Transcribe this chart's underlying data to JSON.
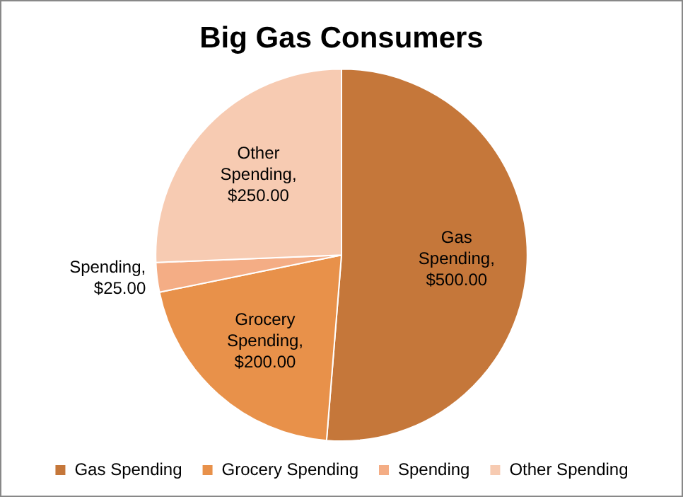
{
  "chart_data": {
    "type": "pie",
    "title": "Big Gas Consumers",
    "categories": [
      "Gas Spending",
      "Grocery Spending",
      "Spending",
      "Other Spending"
    ],
    "values": [
      500,
      200,
      25,
      250
    ],
    "colors": [
      "#c5773a",
      "#e8914a",
      "#f4ad85",
      "#f7cbb2"
    ],
    "value_labels": [
      "Gas Spending, $500.00",
      "Grocery Spending, $200.00",
      "Spending, $25.00",
      "Other Spending, $250.00"
    ],
    "legend": "bottom"
  }
}
